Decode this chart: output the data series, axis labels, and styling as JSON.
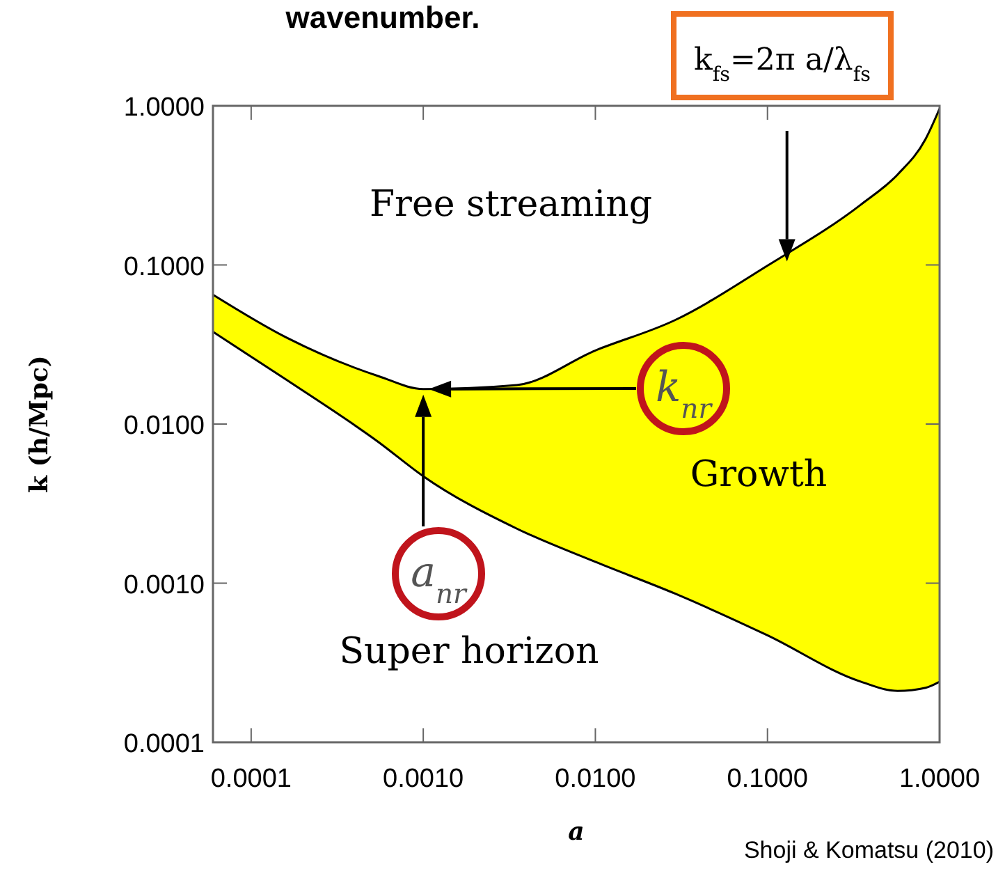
{
  "chart_data": {
    "type": "area",
    "title": "wavenumber.",
    "xlabel": "a",
    "ylabel": "k (h/Mpc)",
    "log": "xy",
    "grid": false,
    "xlim": [
      6e-05,
      1
    ],
    "ylim": [
      0.0001,
      1
    ],
    "xticks": [
      {
        "value": 0.0001,
        "label": "0.0001"
      },
      {
        "value": 0.001,
        "label": "0.0010"
      },
      {
        "value": 0.01,
        "label": "0.0100"
      },
      {
        "value": 0.1,
        "label": "0.1000"
      },
      {
        "value": 1,
        "label": "1.0000"
      }
    ],
    "yticks": [
      {
        "value": 0.0001,
        "label": "0.0001"
      },
      {
        "value": 0.001,
        "label": "0.0010"
      },
      {
        "value": 0.01,
        "label": "0.0100"
      },
      {
        "value": 0.1,
        "label": "0.1000"
      },
      {
        "value": 1,
        "label": "1.0000"
      }
    ],
    "x": [
      6e-05,
      0.00016,
      0.00055,
      0.001,
      0.0035,
      0.01,
      0.029,
      0.1,
      0.35,
      0.57,
      0.83,
      1
    ],
    "series": [
      {
        "color": "#ffff00",
        "values": [
          0.065,
          0.035,
          0.02,
          0.0166,
          0.0176,
          0.029,
          0.045,
          0.099,
          0.24,
          0.37,
          0.62,
          0.96
        ]
      },
      {
        "color": "#ffffff",
        "values": [
          0.038,
          0.019,
          0.0077,
          0.0047,
          0.0022,
          0.00136,
          0.00086,
          0.00047,
          0.00024,
          0.00021,
          0.00022,
          0.00024
        ]
      }
    ],
    "annotations": [
      "Free streaming",
      "Growth",
      "Super horizon",
      "k$_{nr}$",
      "a$_{nr}$",
      "k$_{fs}$=2π a/λ$_{fs}$",
      "Shoji & Komatsu (2010)"
    ]
  }
}
